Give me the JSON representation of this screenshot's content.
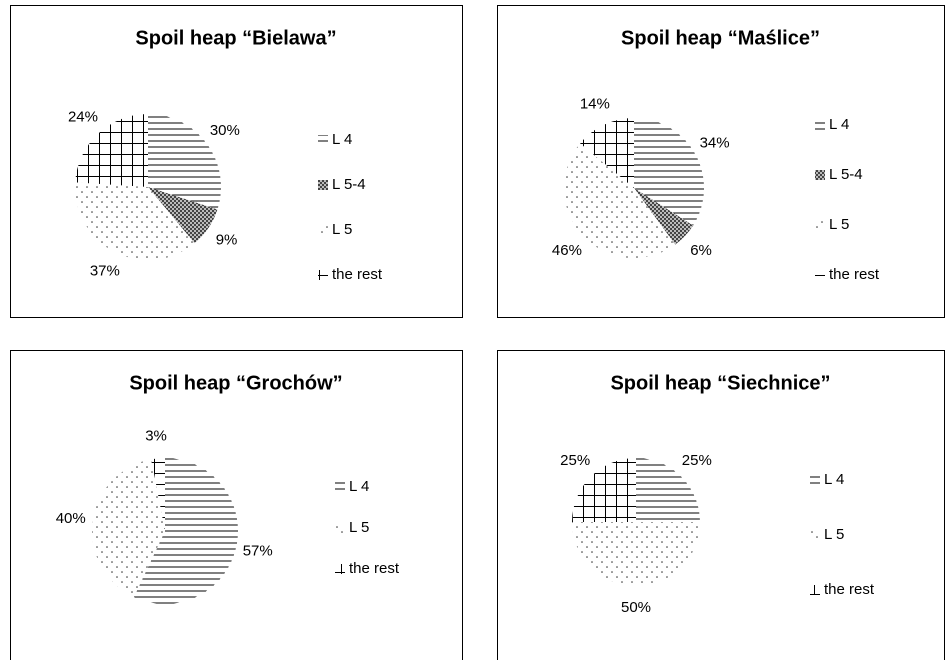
{
  "chart_data": [
    {
      "type": "pie",
      "title": "Spoil heap “Bielawa”",
      "categories": [
        "L 4",
        "L 5-4",
        "L 5",
        "the rest"
      ],
      "values": [
        30,
        9,
        37,
        24
      ],
      "value_labels": [
        "30%",
        "9%",
        "37%",
        "24%"
      ],
      "patterns": [
        "horizontal",
        "dense",
        "dots",
        "grid"
      ]
    },
    {
      "type": "pie",
      "title": "Spoil heap “Maślice”",
      "categories": [
        "L 4",
        "L 5-4",
        "L 5",
        "the rest"
      ],
      "values": [
        34,
        6,
        46,
        14
      ],
      "value_labels": [
        "34%",
        "6%",
        "46%",
        "14%"
      ],
      "patterns": [
        "horizontal",
        "dense",
        "dots",
        "grid"
      ]
    },
    {
      "type": "pie",
      "title": "Spoil heap “Grochów”",
      "categories": [
        "L 4",
        "L 5",
        "the rest"
      ],
      "values": [
        57,
        40,
        3
      ],
      "value_labels": [
        "57%",
        "40%",
        "3%"
      ],
      "patterns": [
        "horizontal",
        "dots",
        "grid"
      ]
    },
    {
      "type": "pie",
      "title": "Spoil heap “Siechnice”",
      "categories": [
        "L 4",
        "L 5",
        "the rest"
      ],
      "values": [
        25,
        50,
        25
      ],
      "value_labels": [
        "25%",
        "50%",
        "25%"
      ],
      "patterns": [
        "horizontal",
        "dots",
        "grid"
      ]
    }
  ]
}
